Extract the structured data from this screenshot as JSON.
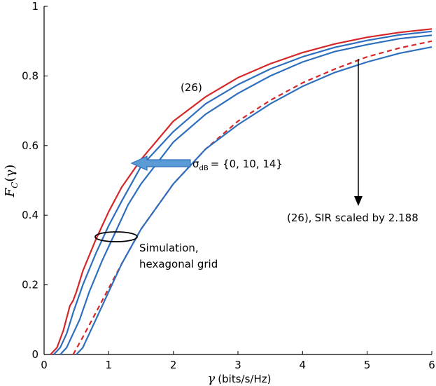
{
  "chart_data": {
    "type": "line",
    "xlabel_symbol": "γ",
    "xlabel_unit": "(bits/s/Hz)",
    "ylabel_main": "F",
    "ylabel_sub": "C",
    "ylabel_arg": "(γ)",
    "xlim": [
      0,
      6
    ],
    "ylim": [
      0,
      1
    ],
    "x_ticks": [
      "0",
      "1",
      "2",
      "3",
      "4",
      "5",
      "6"
    ],
    "y_ticks": [
      "0",
      "0.2",
      "0.4",
      "0.6",
      "0.8",
      "1"
    ],
    "grid": false,
    "colors": {
      "analytic": "#d62728",
      "simulation": "#2e6fbd",
      "arrow_fill": "#5b9bd5"
    },
    "series": [
      {
        "style": "solid",
        "color_key": "analytic",
        "x": [
          0.1,
          0.2,
          0.3,
          0.4,
          0.45,
          0.5,
          0.6,
          0.8,
          1.0,
          1.2,
          1.5,
          2.0,
          2.5,
          3.0,
          3.5,
          4.0,
          4.5,
          5.0,
          5.5,
          6.0
        ],
        "y": [
          0.0,
          0.02,
          0.07,
          0.14,
          0.155,
          0.18,
          0.24,
          0.33,
          0.41,
          0.48,
          0.56,
          0.67,
          0.74,
          0.795,
          0.835,
          0.867,
          0.892,
          0.911,
          0.925,
          0.935
        ]
      },
      {
        "style": "dashed",
        "color_key": "analytic",
        "x": [
          0.45,
          0.6,
          0.8,
          1.0,
          1.2,
          1.5,
          2.0,
          2.5,
          3.0,
          3.5,
          4.0,
          4.5,
          5.0,
          5.5,
          6.0
        ],
        "y": [
          0.0,
          0.05,
          0.12,
          0.19,
          0.26,
          0.36,
          0.49,
          0.59,
          0.67,
          0.73,
          0.78,
          0.82,
          0.855,
          0.88,
          0.9
        ]
      },
      {
        "style": "solid",
        "color_key": "simulation",
        "x": [
          0.15,
          0.25,
          0.35,
          0.45,
          0.6,
          0.8,
          1.0,
          1.2,
          1.5,
          2.0,
          2.5,
          3.0,
          3.5,
          4.0,
          4.5,
          5.0,
          5.5,
          6.0
        ],
        "y": [
          0.0,
          0.02,
          0.06,
          0.12,
          0.2,
          0.29,
          0.37,
          0.44,
          0.54,
          0.64,
          0.72,
          0.775,
          0.82,
          0.855,
          0.882,
          0.902,
          0.918,
          0.928
        ]
      },
      {
        "style": "solid",
        "color_key": "simulation",
        "x": [
          0.25,
          0.35,
          0.45,
          0.55,
          0.7,
          0.9,
          1.1,
          1.3,
          1.5,
          2.0,
          2.5,
          3.0,
          3.5,
          4.0,
          4.5,
          5.0,
          5.5,
          6.0
        ],
        "y": [
          0.0,
          0.02,
          0.06,
          0.1,
          0.18,
          0.27,
          0.35,
          0.43,
          0.49,
          0.61,
          0.69,
          0.75,
          0.8,
          0.84,
          0.87,
          0.89,
          0.907,
          0.917
        ]
      },
      {
        "style": "solid",
        "color_key": "simulation",
        "x": [
          0.5,
          0.6,
          0.65,
          0.7,
          0.8,
          1.0,
          1.2,
          1.5,
          2.0,
          2.5,
          3.0,
          3.5,
          4.0,
          4.5,
          5.0,
          5.5,
          6.0
        ],
        "y": [
          0.0,
          0.02,
          0.04,
          0.06,
          0.1,
          0.18,
          0.26,
          0.36,
          0.49,
          0.59,
          0.66,
          0.72,
          0.77,
          0.81,
          0.84,
          0.865,
          0.883
        ]
      }
    ],
    "annotations": {
      "analytic_label": "(26)",
      "sigma_symbol": "σ",
      "sigma_sub": "dB",
      "sigma_values": "= {0, 10, 14}",
      "scaled_prefix": "(26),",
      "scaled_text": "SIR scaled by 2.188",
      "sim_line1": "Simulation,",
      "sim_line2": "hexagonal grid"
    }
  }
}
